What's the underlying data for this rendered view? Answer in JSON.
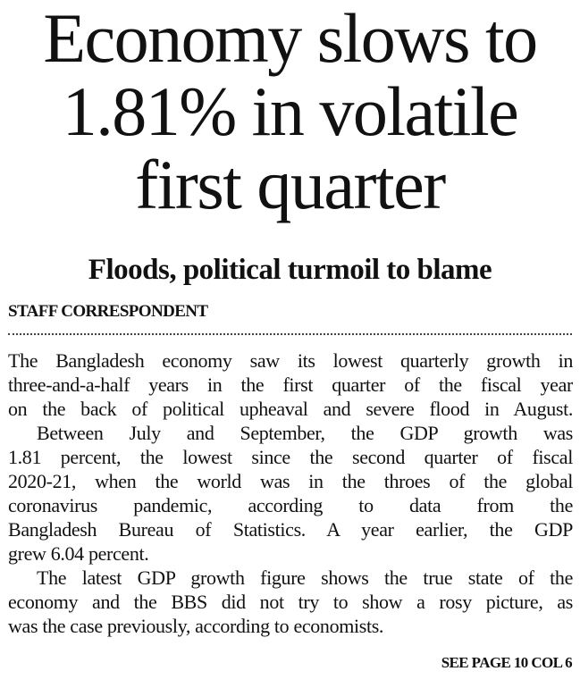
{
  "headline": {
    "lines": [
      "Economy slows to",
      "1.81% in volatile",
      "first quarter"
    ]
  },
  "subhead": "Floods, political turmoil to blame",
  "byline": "STAFF CORRESPONDENT",
  "body": {
    "paragraphs": [
      {
        "lines": [
          "The Bangladesh economy saw its lowest quarterly growth in",
          "three-and-a-half years in the first quarter of the fiscal year",
          "on the back of political upheaval and severe flood in August."
        ]
      },
      {
        "lines": [
          "Between July and September, the GDP growth was",
          "1.81 percent, the lowest since the second quarter of fiscal",
          "2020-21, when the world was in the throes of the global",
          "coronavirus pandemic, according to data from the",
          "Bangladesh Bureau of Statistics. A year earlier, the GDP",
          "grew 6.04 percent."
        ]
      },
      {
        "lines": [
          "The latest GDP growth figure shows the true state of the",
          "economy and the BBS did not try to show a rosy picture, as",
          "was the case previously, according to economists."
        ]
      }
    ]
  },
  "jump": "SEE PAGE 10 COL 6"
}
